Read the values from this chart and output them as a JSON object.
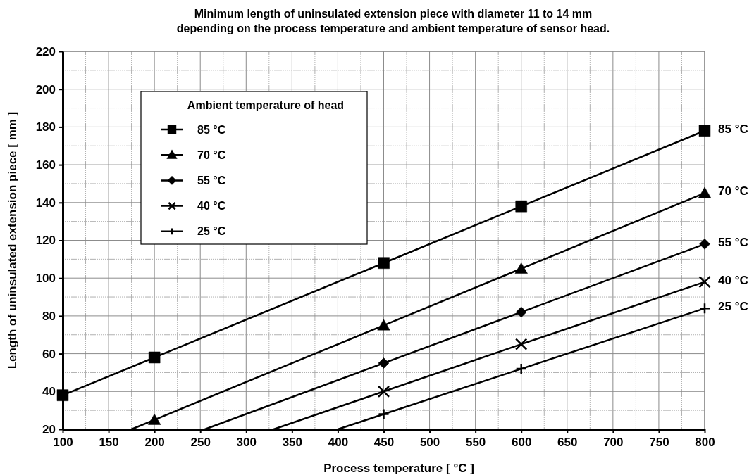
{
  "chart_data": {
    "type": "line",
    "title": "Minimum length of uninsulated extension piece with diameter 11 to 14 mm\ndepending on the process temperature and ambient temperature of sensor head.",
    "xlabel": "Process temperature [ °C ]",
    "ylabel": "Length of uninsulated extension piece [ mm ]",
    "legend_title": "Ambient temperature of head",
    "legend": "top left",
    "grid": true,
    "line_style": "solid",
    "xlim": [
      100,
      800
    ],
    "xticks": [
      100,
      {
        "value": 125,
        "label": null
      },
      150,
      {
        "value": 175,
        "label": null
      },
      200,
      {
        "value": 225,
        "label": null
      },
      250,
      {
        "value": 275,
        "label": null
      },
      300,
      {
        "value": 325,
        "label": null
      },
      350,
      {
        "value": 375,
        "label": null
      },
      400,
      {
        "value": 425,
        "label": null
      },
      450,
      {
        "value": 475,
        "label": null
      },
      500,
      {
        "value": 525,
        "label": null
      },
      550,
      {
        "value": 575,
        "label": null
      },
      600,
      {
        "value": 625,
        "label": null
      },
      650,
      {
        "value": 675,
        "label": null
      },
      700,
      {
        "value": 725,
        "label": null
      },
      750,
      {
        "value": 775,
        "label": null
      },
      800
    ],
    "ylim": [
      20,
      220
    ],
    "yticks": [
      20,
      {
        "value": 30,
        "label": null
      },
      40,
      {
        "value": 50,
        "label": null
      },
      60,
      {
        "value": 70,
        "label": null
      },
      80,
      {
        "value": 90,
        "label": null
      },
      100,
      {
        "value": 110,
        "label": null
      },
      120,
      {
        "value": 130,
        "label": null
      },
      140,
      {
        "value": 150,
        "label": null
      },
      160,
      {
        "value": 170,
        "label": null
      },
      180,
      {
        "value": 190,
        "label": null
      },
      200,
      {
        "value": 210,
        "label": null
      },
      220
    ],
    "series": [
      {
        "name": "85 °C",
        "color": "#000000",
        "marker": "square",
        "x": [
          100,
          200,
          450,
          600,
          800
        ],
        "values": [
          38,
          58,
          108,
          138,
          178
        ]
      },
      {
        "name": "70 °C",
        "color": "#000000",
        "marker": "triangle",
        "x": [
          200,
          450,
          600,
          800
        ],
        "values": [
          25,
          75,
          105,
          145
        ]
      },
      {
        "name": "55 °C",
        "color": "#000000",
        "marker": "diamond",
        "x": [
          450,
          600,
          800
        ],
        "values": [
          55,
          82,
          118
        ]
      },
      {
        "name": "40 °C",
        "color": "#000000",
        "marker": "x",
        "x": [
          450,
          600,
          800
        ],
        "values": [
          40,
          65,
          98
        ]
      },
      {
        "name": "25 °C",
        "color": "#000000",
        "marker": "cross",
        "x": [
          450,
          600,
          800
        ],
        "values": [
          28,
          52,
          84
        ]
      },
      {
        "type": "line",
        "color": "#000000",
        "marker": "none",
        "x": [
          175,
          200
        ],
        "values": [
          20,
          25
        ]
      },
      {
        "type": "line",
        "color": "#000000",
        "marker": "none",
        "x": [
          255,
          450
        ],
        "values": [
          20,
          55
        ]
      },
      {
        "type": "line",
        "color": "#000000",
        "marker": "none",
        "x": [
          330,
          450
        ],
        "values": [
          20,
          40
        ]
      },
      {
        "type": "line",
        "color": "#000000",
        "marker": "none",
        "x": [
          400,
          450
        ],
        "values": [
          20,
          28
        ]
      }
    ]
  }
}
